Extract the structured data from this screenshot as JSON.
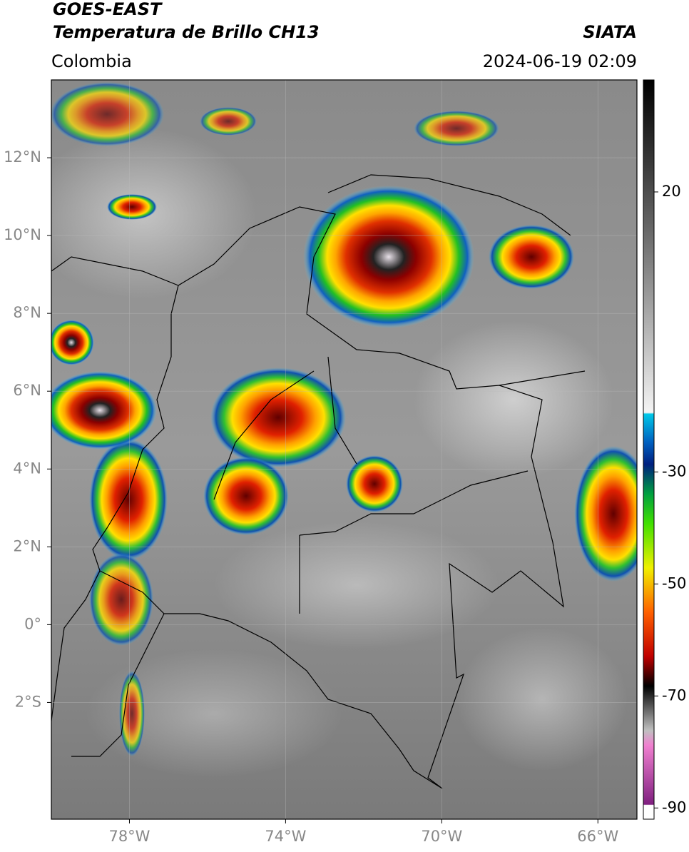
{
  "header": {
    "title": "GOES-EAST",
    "subtitle": "Temperatura de Brillo CH13",
    "source": "SIATA",
    "region": "Colombia",
    "timestamp": "2024-06-19 02:09"
  },
  "map": {
    "xlim": [
      -80,
      -65
    ],
    "ylim": [
      -5,
      14
    ],
    "xticks": [
      {
        "value": -78,
        "label": "78°W"
      },
      {
        "value": -74,
        "label": "74°W"
      },
      {
        "value": -70,
        "label": "70°W"
      },
      {
        "value": -66,
        "label": "66°W"
      }
    ],
    "yticks": [
      {
        "value": 12,
        "label": "12°N"
      },
      {
        "value": 10,
        "label": "10°N"
      },
      {
        "value": 8,
        "label": "8°N"
      },
      {
        "value": 6,
        "label": "6°N"
      },
      {
        "value": 4,
        "label": "4°N"
      },
      {
        "value": 2,
        "label": "2°N"
      },
      {
        "value": 0,
        "label": "0°"
      },
      {
        "value": -2,
        "label": "2°S"
      }
    ],
    "grid": true
  },
  "colorbar": {
    "lim": [
      -92,
      40
    ],
    "ticks": [
      20,
      -30,
      -50,
      -70,
      -90
    ]
  }
}
